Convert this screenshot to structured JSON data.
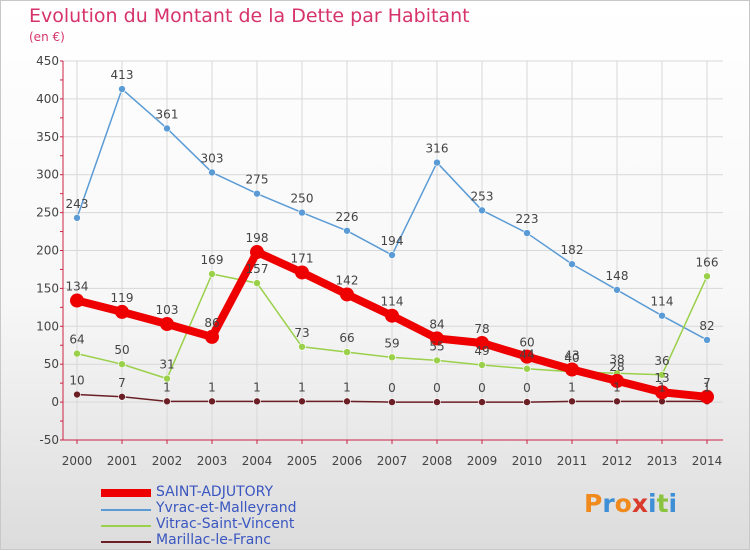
{
  "header": {
    "title": "Evolution du Montant de la Dette par Habitant",
    "subtitle": "(en €)"
  },
  "colors": {
    "title": "#d6336c",
    "axis": "#cc2244",
    "grid": "#d8d8d8",
    "label": "#444444",
    "legend_text": "#3a56c0"
  },
  "logo": {
    "letters": [
      "P",
      "r",
      "o",
      "x",
      "i",
      "t",
      "i"
    ],
    "colors": [
      "#f08a1c",
      "#3f8fd6",
      "#f08a1c",
      "#d93a2b",
      "#3f8fd6",
      "#8ac43f",
      "#3f8fd6"
    ]
  },
  "chart_data": {
    "type": "line",
    "title": "Evolution du Montant de la Dette par Habitant",
    "ylabel": "(en €)",
    "x": [
      "2000",
      "2001",
      "2002",
      "2003",
      "2004",
      "2005",
      "2006",
      "2007",
      "2008",
      "2009",
      "2010",
      "2011",
      "2012",
      "2013",
      "2014"
    ],
    "ylim": [
      -50,
      450
    ],
    "yticks": [
      -50,
      0,
      50,
      100,
      150,
      200,
      250,
      300,
      350,
      400,
      450
    ],
    "grid": true,
    "legend_position": "bottom-left",
    "series": [
      {
        "name": "SAINT-ADJUTORY",
        "color": "#ee0000",
        "width": 8,
        "marker": 7,
        "values": [
          134,
          119,
          103,
          86,
          198,
          171,
          142,
          114,
          84,
          78,
          60,
          43,
          28,
          13,
          7
        ]
      },
      {
        "name": "Yvrac-et-Malleyrand",
        "color": "#5b9bd5",
        "width": 1.5,
        "marker": 3.5,
        "values": [
          243,
          413,
          361,
          303,
          275,
          250,
          226,
          194,
          316,
          253,
          223,
          182,
          148,
          114,
          82
        ]
      },
      {
        "name": "Vitrac-Saint-Vincent",
        "color": "#9ad04a",
        "width": 1.5,
        "marker": 3.5,
        "values": [
          64,
          50,
          31,
          169,
          157,
          73,
          66,
          59,
          55,
          49,
          44,
          40,
          38,
          36,
          166
        ]
      },
      {
        "name": "Marillac-le-Franc",
        "color": "#6b1f25",
        "width": 1.5,
        "marker": 3.5,
        "values": [
          10,
          7,
          1,
          1,
          1,
          1,
          1,
          0,
          0,
          0,
          0,
          1,
          1,
          1,
          1
        ]
      }
    ],
    "labels": [
      {
        "series": 0,
        "text": [
          "134",
          "119",
          "103",
          "86",
          "198",
          "171",
          "142",
          "114",
          "84",
          "78",
          "60",
          "43",
          "28",
          "13",
          "7"
        ]
      },
      {
        "series": 1,
        "text": [
          "243",
          "413",
          "361",
          "303",
          "275",
          "250",
          "226",
          "194",
          "316",
          "253",
          "223",
          "182",
          "148",
          "114",
          "82"
        ]
      },
      {
        "series": 2,
        "text": [
          "64",
          "50",
          "31",
          "169",
          "157",
          "73",
          "66",
          "59",
          "55",
          "49",
          "44",
          "40",
          "38",
          "36",
          "166"
        ]
      },
      {
        "series": 3,
        "text": [
          "10",
          "7",
          "1",
          "1",
          "1",
          "1",
          "1",
          "0",
          "0",
          "0",
          "0",
          "1",
          "1",
          "1",
          "1"
        ]
      }
    ]
  }
}
